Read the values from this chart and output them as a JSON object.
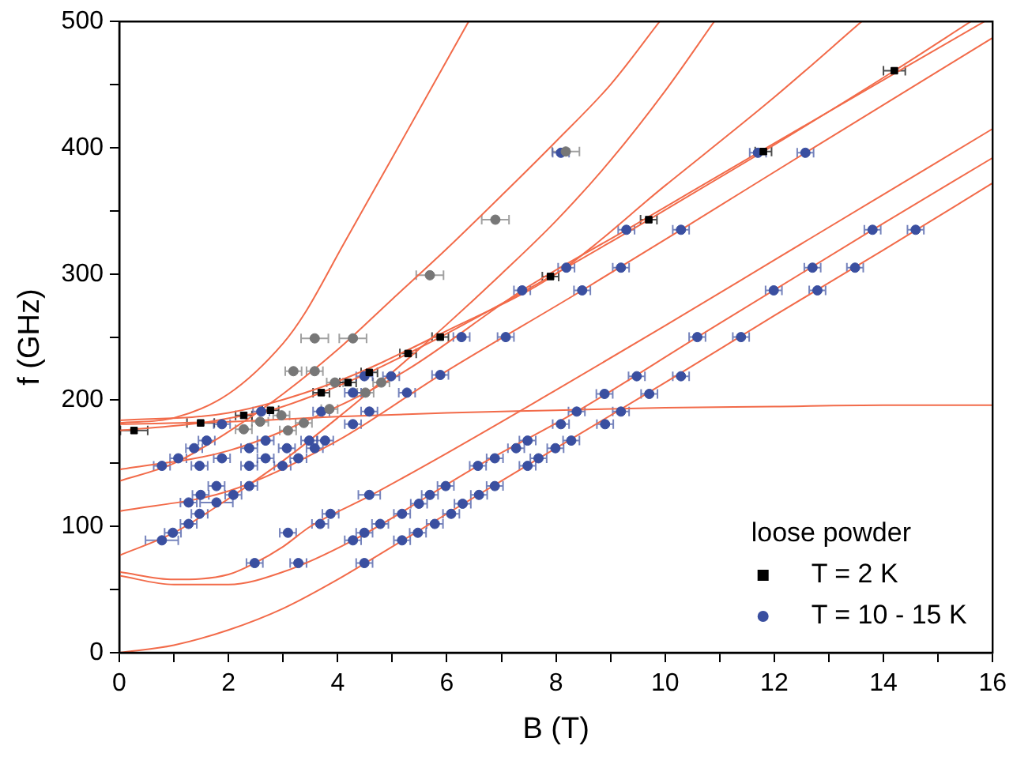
{
  "chart_data": {
    "type": "scatter",
    "xlabel": "B (T)",
    "ylabel": "f (GHz)",
    "xlim": [
      0,
      16
    ],
    "ylim": [
      0,
      500
    ],
    "xticks": [
      0,
      {
        "value": 1,
        "label": null
      },
      2,
      {
        "value": 3,
        "label": null
      },
      4,
      {
        "value": 5,
        "label": null
      },
      6,
      {
        "value": 7,
        "label": null
      },
      8,
      {
        "value": 9,
        "label": null
      },
      10,
      {
        "value": 11,
        "label": null
      },
      12,
      {
        "value": 13,
        "label": null
      },
      14,
      {
        "value": 15,
        "label": null
      },
      16
    ],
    "yticks": [
      0,
      {
        "value": 50,
        "label": null
      },
      100,
      {
        "value": 150,
        "label": null
      },
      200,
      {
        "value": 250,
        "label": null
      },
      300,
      {
        "value": 350,
        "label": null
      },
      400,
      {
        "value": 450,
        "label": null
      },
      500
    ],
    "grid": false,
    "legend": "bottom right",
    "legend_title": "loose powder",
    "series": [
      {
        "type": "line",
        "color": "#f26b4a",
        "marker": "none",
        "x": [
          0,
          1,
          2,
          3,
          4,
          5,
          6,
          8,
          10,
          12,
          14,
          16
        ],
        "values": [
          0,
          6,
          18,
          35,
          58,
          84,
          110,
          162,
          214,
          267,
          319,
          372
        ]
      },
      {
        "type": "line",
        "color": "#f26b4a",
        "marker": "none",
        "x": [
          0,
          1,
          2,
          3,
          4.28,
          6.57,
          8.38,
          10.59,
          13.8,
          16
        ],
        "values": [
          61,
          54,
          54,
          64,
          89,
          148,
          191,
          250,
          335,
          392
        ]
      },
      {
        "type": "line",
        "color": "#f26b4a",
        "marker": "none",
        "x": [
          0,
          1,
          2,
          2.48,
          3,
          3.5,
          4.58,
          6,
          8,
          10,
          12,
          14,
          16
        ],
        "values": [
          64,
          58,
          62,
          71,
          84,
          100,
          124,
          158,
          208,
          259,
          311,
          363,
          415
        ]
      },
      {
        "type": "line",
        "color": "#f26b4a",
        "marker": "none",
        "x": [
          0,
          1,
          2,
          3,
          4,
          5,
          6,
          7,
          8,
          9,
          10,
          10.9
        ],
        "values": [
          77,
          95,
          122,
          152,
          186,
          222,
          260,
          300,
          342,
          390,
          445,
          500
        ]
      },
      {
        "type": "line",
        "color": "#f26b4a",
        "marker": "none",
        "x": [
          0,
          2,
          4,
          5.88,
          8.48,
          10.29,
          12.57,
          16
        ],
        "values": [
          112,
          128,
          168,
          220,
          287,
          335,
          396,
          487
        ]
      },
      {
        "type": "line",
        "color": "#f26b4a",
        "marker": "none",
        "x": [
          0,
          1,
          2,
          3,
          4,
          5,
          6,
          7,
          8,
          9,
          9.9
        ],
        "values": [
          136,
          150,
          175,
          205,
          240,
          280,
          320,
          362,
          405,
          450,
          500
        ]
      },
      {
        "type": "line",
        "color": "#f26b4a",
        "marker": "none",
        "x": [
          0,
          2,
          4,
          5.27,
          7.38,
          9.29,
          11.7,
          15.85
        ],
        "values": [
          145,
          160,
          195,
          224,
          287,
          335,
          396,
          500
        ]
      },
      {
        "type": "line",
        "color": "#f26b4a",
        "marker": "none",
        "x": [
          0,
          1.49,
          2.28,
          2.77,
          3.7,
          4.58,
          5.29,
          5.88,
          7.9,
          9.7,
          11.8,
          14.2,
          15.6
        ],
        "values": [
          176,
          182,
          188,
          192,
          206,
          222,
          237,
          250,
          298,
          343,
          397,
          461,
          500
        ]
      },
      {
        "type": "line",
        "color": "#f26b4a",
        "marker": "none",
        "x": [
          0,
          2,
          4,
          6,
          8,
          10,
          12,
          14,
          16
        ],
        "values": [
          181,
          183,
          187,
          190,
          192,
          194,
          195,
          196,
          196
        ]
      },
      {
        "type": "line",
        "color": "#f26b4a",
        "marker": "none",
        "x": [
          0,
          2,
          4,
          6,
          8,
          10,
          12,
          13.6
        ],
        "values": [
          184,
          190,
          215,
          255,
          300,
          370,
          440,
          500
        ]
      },
      {
        "type": "line",
        "color": "#f26b4a",
        "marker": "none",
        "x": [
          0,
          1,
          2,
          3,
          3.4,
          4.1,
          5,
          6.4
        ],
        "values": [
          182,
          186,
          205,
          245,
          269,
          323,
          392,
          500
        ]
      },
      {
        "color": "#777777",
        "marker": "circle",
        "x": [
          2.28,
          2.58,
          2.97,
          3.09,
          3.19,
          3.38,
          3.58,
          3.58,
          3.85,
          3.95,
          4.28,
          4.51,
          4.8,
          5.69,
          6.89,
          8.18
        ],
        "values": [
          177,
          183,
          188,
          176,
          223,
          182,
          223,
          249,
          193,
          214,
          249,
          206,
          214,
          299,
          343,
          397
        ],
        "xerrors": [
          0.15,
          0.15,
          0.15,
          0.15,
          0.15,
          0.15,
          0.15,
          0.25,
          0.15,
          0.15,
          0.25,
          0.15,
          0.15,
          0.25,
          0.25,
          0.25
        ]
      },
      {
        "name": "T = 2 K",
        "color": "#000000",
        "marker": "square",
        "x": [
          0.27,
          1.49,
          2.28,
          2.77,
          3.7,
          4.19,
          4.58,
          5.29,
          5.88,
          7.9,
          9.7,
          11.8,
          14.2
        ],
        "values": [
          176,
          182,
          188,
          192,
          206,
          214,
          222,
          237,
          250,
          298,
          343,
          397,
          461
        ],
        "xerrors": [
          0.25,
          0.25,
          0.15,
          0.15,
          0.15,
          0.15,
          0.15,
          0.15,
          0.15,
          0.15,
          0.15,
          0.15,
          0.2
        ]
      },
      {
        "name": "T = 10 - 15 K",
        "color": "#3a4fa0",
        "marker": "circle",
        "x": [
          0.78,
          1.08,
          1.37,
          1.6,
          1.88,
          1.47,
          1.88,
          2.38,
          2.68,
          2.38,
          2.68,
          3.07,
          3.48,
          3.77,
          3.58,
          3.28,
          2.99,
          2.6,
          3.7,
          4.28,
          4.58,
          4.49,
          4.28,
          4.98,
          5.27,
          5.88,
          6.27,
          7.08,
          7.38,
          8.48,
          8.19,
          9.19,
          9.29,
          10.29,
          8.09,
          11.7,
          12.57,
          0.78,
          0.98,
          1.27,
          1.47,
          1.78,
          2.09,
          2.38,
          1.27,
          1.49,
          1.78,
          2.48,
          3.28,
          4.49,
          3.09,
          3.68,
          3.87,
          4.58,
          4.28,
          4.49,
          4.78,
          5.18,
          5.49,
          5.69,
          5.98,
          6.57,
          6.88,
          7.27,
          7.48,
          8.09,
          8.38,
          8.89,
          9.48,
          10.59,
          11.99,
          12.7,
          13.8,
          5.18,
          5.47,
          5.78,
          6.08,
          6.29,
          6.59,
          6.88,
          7.48,
          7.68,
          7.99,
          8.28,
          8.9,
          9.19,
          9.71,
          10.29,
          11.39,
          12.79,
          13.48,
          14.59
        ],
        "values": [
          148,
          154,
          162,
          168,
          181,
          148,
          154,
          162,
          168,
          148,
          154,
          162,
          168,
          168,
          162,
          154,
          148,
          191,
          191,
          181,
          191,
          219,
          206,
          219,
          206,
          220,
          250,
          250,
          287,
          287,
          305,
          305,
          335,
          335,
          396,
          396,
          396,
          89,
          95,
          102,
          110,
          119,
          125,
          132,
          119,
          125,
          132,
          71,
          71,
          71,
          95,
          102,
          110,
          125,
          89,
          95,
          102,
          110,
          118,
          125,
          132,
          148,
          154,
          162,
          168,
          181,
          191,
          205,
          219,
          250,
          287,
          305,
          335,
          89,
          95,
          102,
          110,
          118,
          125,
          132,
          148,
          154,
          162,
          168,
          181,
          191,
          205,
          219,
          250,
          287,
          305,
          335
        ],
        "xerrors": [
          0.15,
          0.15,
          0.15,
          0.15,
          0.15,
          0.15,
          0.15,
          0.15,
          0.15,
          0.15,
          0.15,
          0.15,
          0.15,
          0.15,
          0.15,
          0.15,
          0.15,
          0.15,
          0.15,
          0.15,
          0.15,
          0.15,
          0.15,
          0.15,
          0.15,
          0.15,
          0.15,
          0.15,
          0.15,
          0.15,
          0.15,
          0.15,
          0.15,
          0.15,
          0.15,
          0.15,
          0.15,
          0.3,
          0.15,
          0.15,
          0.15,
          0.3,
          0.15,
          0.15,
          0.15,
          0.15,
          0.15,
          0.15,
          0.15,
          0.15,
          0.15,
          0.15,
          0.15,
          0.2,
          0.15,
          0.15,
          0.15,
          0.15,
          0.15,
          0.15,
          0.15,
          0.15,
          0.15,
          0.15,
          0.15,
          0.15,
          0.15,
          0.15,
          0.15,
          0.15,
          0.15,
          0.15,
          0.15,
          0.15,
          0.15,
          0.15,
          0.15,
          0.15,
          0.15,
          0.15,
          0.15,
          0.15,
          0.15,
          0.15,
          0.15,
          0.15,
          0.15,
          0.15,
          0.15,
          0.15,
          0.15,
          0.15
        ]
      }
    ]
  }
}
